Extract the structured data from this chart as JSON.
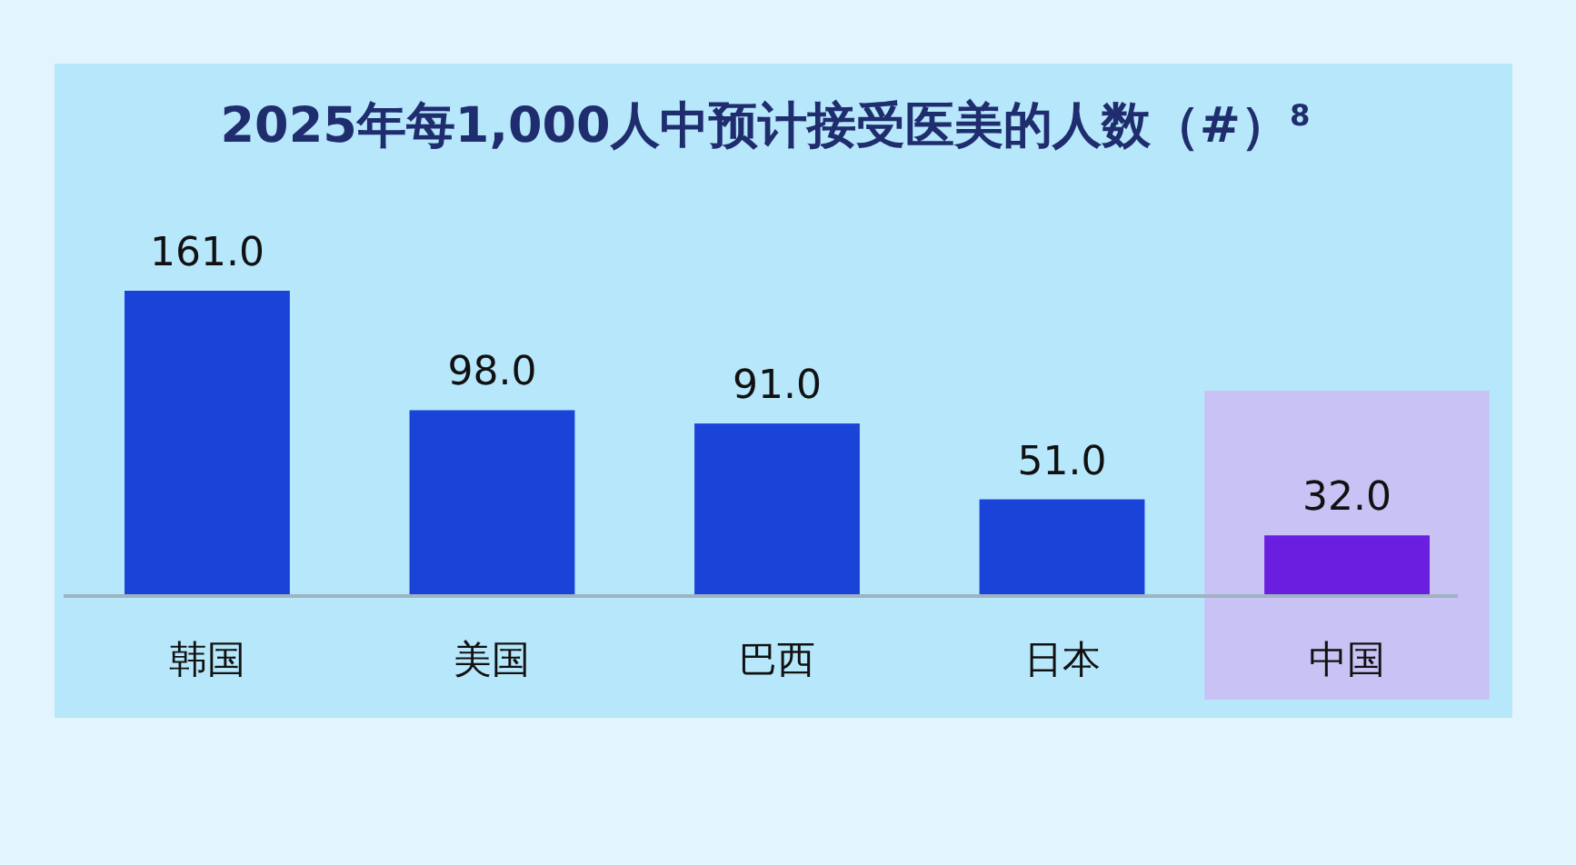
{
  "chart_data": {
    "type": "bar",
    "title": "2025年每1,000人中预计接受医美的人数（#）$^{8}$",
    "categories": [
      "韩国",
      "美国",
      "巴西",
      "日本",
      "中国"
    ],
    "values": [
      161.0,
      98.0,
      91.0,
      51.0,
      32.0
    ],
    "colors": [
      "#1a44d8",
      "#1a44d8",
      "#1a44d8",
      "#1a44d8",
      "#6a1fe0"
    ],
    "value_labels": [
      "161.0",
      "98.0",
      "91.0",
      "51.0",
      "32.0"
    ],
    "bands": [
      {
        "axis": "x",
        "from": "中国",
        "to": "中国",
        "color": "#c9c3f5"
      }
    ]
  }
}
